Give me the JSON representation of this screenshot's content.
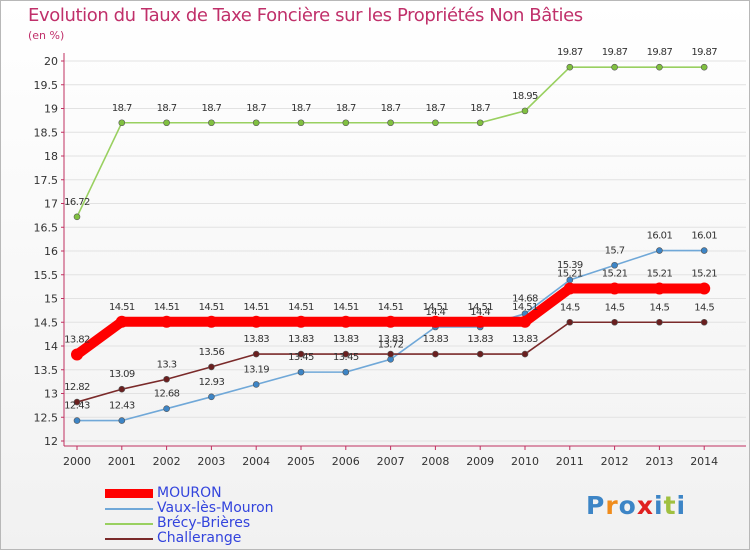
{
  "chart_data": {
    "type": "line",
    "title": "Evolution du Taux de Taxe Foncière sur les Propriétés Non Bâties",
    "ylabel": "(en %)",
    "xlabel": "",
    "ylim": [
      12,
      20
    ],
    "yticks": [
      "12",
      "12.5",
      "13",
      "13.5",
      "14",
      "14.5",
      "15",
      "15.5",
      "16",
      "16.5",
      "17",
      "17.5",
      "18",
      "18.5",
      "19",
      "19.5",
      "20"
    ],
    "categories": [
      "2000",
      "2001",
      "2002",
      "2003",
      "2004",
      "2005",
      "2006",
      "2007",
      "2008",
      "2009",
      "2010",
      "2011",
      "2012",
      "2013",
      "2014"
    ],
    "series": [
      {
        "name": "Brécy-Brières",
        "color": "#99d060",
        "point": "#80c040",
        "values": [
          16.72,
          18.7,
          18.7,
          18.7,
          18.7,
          18.7,
          18.7,
          18.7,
          18.7,
          18.7,
          18.95,
          19.87,
          19.87,
          19.87,
          19.87
        ],
        "labels": [
          "16.72",
          "18.7",
          "18.7",
          "18.7",
          "18.7",
          "18.7",
          "18.7",
          "18.7",
          "18.7",
          "18.7",
          "18.95",
          "19.87",
          "19.87",
          "19.87",
          "19.87"
        ]
      },
      {
        "name": "Vaux-lès-Mouron",
        "color": "#70a8d8",
        "point": "#3d85c6",
        "values": [
          12.43,
          12.43,
          12.68,
          12.93,
          13.19,
          13.45,
          13.45,
          13.72,
          14.4,
          14.4,
          14.68,
          15.39,
          15.7,
          16.01,
          16.01
        ],
        "labels": [
          "12.43",
          "12.43",
          "12.68",
          "12.93",
          "13.19",
          "13.45",
          "13.45",
          "13.72",
          "14.4",
          "14.4",
          "14.68",
          "15.39",
          "15.7",
          "16.01",
          "16.01"
        ]
      },
      {
        "name": "Challerange",
        "color": "#7a2a2a",
        "point": "#6a1f1f",
        "values": [
          12.82,
          13.09,
          13.3,
          13.56,
          13.83,
          13.83,
          13.83,
          13.83,
          13.83,
          13.83,
          13.83,
          14.5,
          14.5,
          14.5,
          14.5
        ],
        "labels": [
          "12.82",
          "13.09",
          "13.3",
          "13.56",
          "13.83",
          "13.83",
          "13.83",
          "13.83",
          "13.83",
          "13.83",
          "13.83",
          "14.5",
          "14.5",
          "14.5",
          "14.5"
        ]
      },
      {
        "name": "MOURON",
        "color": "#ff0000",
        "point": "#ff0000",
        "bold": true,
        "values": [
          13.82,
          14.51,
          14.51,
          14.51,
          14.51,
          14.51,
          14.51,
          14.51,
          14.51,
          14.51,
          14.51,
          15.21,
          15.21,
          15.21,
          15.21
        ],
        "labels": [
          "13.82",
          "14.51",
          "14.51",
          "14.51",
          "14.51",
          "14.51",
          "14.51",
          "14.51",
          "14.51",
          "14.51",
          "14.51",
          "15.21",
          "15.21",
          "15.21",
          "15.21"
        ]
      }
    ],
    "legend": [
      {
        "name": "MOURON",
        "color": "#ff0000"
      },
      {
        "name": "Vaux-lès-Mouron",
        "color": "#70a8d8"
      },
      {
        "name": "Brécy-Brières",
        "color": "#99d060"
      },
      {
        "name": "Challerange",
        "color": "#7a2a2a"
      }
    ],
    "legend_position": "bottom-left"
  },
  "logo": {
    "letters": [
      "P",
      "r",
      "o",
      "x",
      "i",
      "t",
      "i"
    ],
    "colors": [
      "#3d85c6",
      "#f08c1c",
      "#3d85c6",
      "#e02020",
      "#3d85c6",
      "#a0c040",
      "#3d85c6"
    ]
  }
}
